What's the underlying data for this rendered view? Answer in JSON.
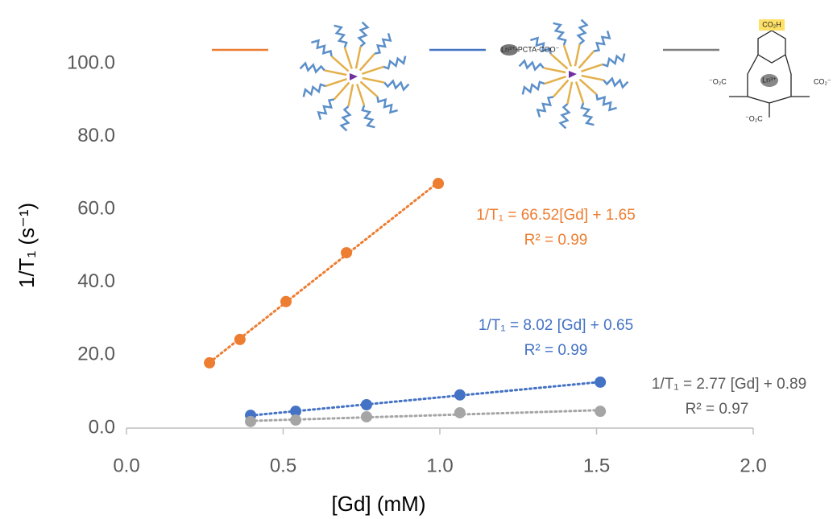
{
  "chart_data": {
    "type": "scatter",
    "xlabel": "[Gd] (mM)",
    "ylabel": "1/T₁ (s⁻¹)",
    "xlim": [
      0,
      2
    ],
    "ylim": [
      0,
      100
    ],
    "xticks": [
      {
        "value": 0,
        "label": "0.0"
      },
      {
        "value": 0.5,
        "label": "0.5"
      },
      {
        "value": 1,
        "label": "1.0"
      },
      {
        "value": 1.5,
        "label": "1.5"
      },
      {
        "value": 2,
        "label": "2.0"
      }
    ],
    "yticks": [
      {
        "value": 0,
        "label": "0.0"
      },
      {
        "value": 20,
        "label": "20.0"
      },
      {
        "value": 40,
        "label": "40.0"
      },
      {
        "value": 60,
        "label": "60.0"
      },
      {
        "value": 80,
        "label": "80.0"
      },
      {
        "value": 100,
        "label": "100.0"
      }
    ],
    "trendline": "dotted",
    "series": [
      {
        "color": "#ED7D31",
        "x": [
          0.265,
          0.362,
          0.509,
          0.702,
          0.995
        ],
        "values": [
          17.9,
          24.3,
          34.7,
          48.1,
          67.1
        ],
        "equation": "1/T₁ = 66.52[Gd] + 1.65",
        "r_squared": "R² = 0.99"
      },
      {
        "color": "#4472C4",
        "x": [
          0.396,
          0.54,
          0.766,
          1.064,
          1.512
        ],
        "values": [
          3.5,
          4.6,
          6.4,
          9.1,
          12.6
        ],
        "equation": "1/T₁ = 8.02 [Gd] + 0.65",
        "r_squared": "R² = 0.99"
      },
      {
        "color": "#A5A5A5",
        "x": [
          0.396,
          0.54,
          0.766,
          1.064,
          1.512
        ],
        "values": [
          1.8,
          2.2,
          3.1,
          4.2,
          4.6
        ],
        "equation": "1/T₁ = 2.77 [Gd] + 0.89",
        "r_squared": "R² = 0.97",
        "label_color": "#595959"
      }
    ],
    "image_labels": [
      "Ln³⁺-PCTA-COO⁻",
      "CO₂H",
      "⁻O₂C",
      "Ln³⁺",
      "CO₂⁻",
      "⁻O₂C"
    ]
  }
}
